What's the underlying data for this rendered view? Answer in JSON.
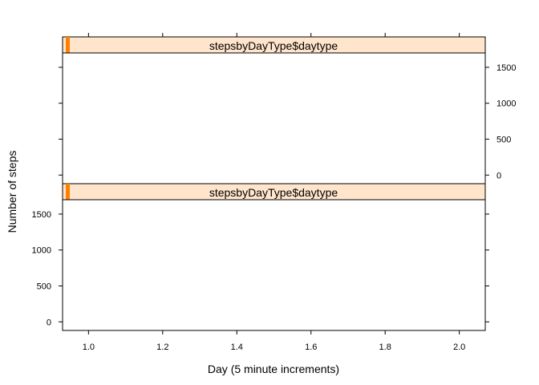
{
  "chart_data": {
    "type": "line",
    "layout": "lattice",
    "xlabel": "Day (5 minute increments)",
    "ylabel": "Number of steps",
    "xlim": [
      0.93,
      2.07
    ],
    "ylim": [
      -120,
      1700
    ],
    "x_ticks": [
      1.0,
      1.2,
      1.4,
      1.6,
      1.8,
      2.0
    ],
    "x_tick_labels": [
      "1.0",
      "1.2",
      "1.4",
      "1.6",
      "1.8",
      "2.0"
    ],
    "y_ticks": [
      0,
      500,
      1000,
      1500
    ],
    "y_tick_labels": [
      "0",
      "500",
      "1000",
      "1500"
    ],
    "panels": [
      {
        "strip_label": "stepsbyDayType$daytype",
        "strip_level_fraction": 0.5,
        "series": []
      },
      {
        "strip_label": "stepsbyDayType$daytype",
        "strip_level_fraction": 0.5,
        "series": []
      }
    ],
    "colors": {
      "strip_fill": "#ffe5cc",
      "strip_indicator": "#ff7f00",
      "frame": "#000000"
    }
  }
}
